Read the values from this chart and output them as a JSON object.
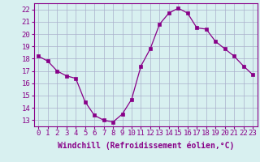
{
  "x": [
    0,
    1,
    2,
    3,
    4,
    5,
    6,
    7,
    8,
    9,
    10,
    11,
    12,
    13,
    14,
    15,
    16,
    17,
    18,
    19,
    20,
    21,
    22,
    23
  ],
  "y": [
    18.2,
    17.8,
    17.0,
    16.6,
    16.4,
    14.5,
    13.4,
    13.0,
    12.85,
    13.5,
    14.7,
    17.4,
    18.8,
    20.8,
    21.7,
    22.1,
    21.7,
    20.5,
    20.4,
    19.4,
    18.8,
    18.2,
    17.4,
    16.7
  ],
  "line_color": "#880088",
  "marker": "s",
  "marker_size": 2.5,
  "bg_color": "#d8f0f0",
  "grid_color": "#aab0cc",
  "xlabel": "Windchill (Refroidissement éolien,°C)",
  "yticks": [
    13,
    14,
    15,
    16,
    17,
    18,
    19,
    20,
    21,
    22
  ],
  "xlim": [
    -0.5,
    23.5
  ],
  "ylim": [
    12.5,
    22.5
  ],
  "tick_fontsize": 6.5,
  "xlabel_fontsize": 7,
  "text_color": "#880088"
}
